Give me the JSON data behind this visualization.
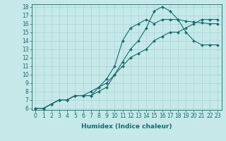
{
  "xlabel": "Humidex (Indice chaleur)",
  "ylabel": "",
  "xlim": [
    -0.5,
    23.5
  ],
  "ylim": [
    5.8,
    18.3
  ],
  "xticks": [
    0,
    1,
    2,
    3,
    4,
    5,
    6,
    7,
    8,
    9,
    10,
    11,
    12,
    13,
    14,
    15,
    16,
    17,
    18,
    19,
    20,
    21,
    22,
    23
  ],
  "yticks": [
    6,
    7,
    8,
    9,
    10,
    11,
    12,
    13,
    14,
    15,
    16,
    17,
    18
  ],
  "bg_color": "#c5e8e8",
  "line_color": "#1a6b6b",
  "grid_color": "#a8d4d4",
  "line1_x": [
    0,
    1,
    2,
    3,
    4,
    5,
    6,
    7,
    8,
    9,
    10,
    11,
    12,
    13,
    14,
    15,
    16,
    17,
    18,
    19,
    20,
    21,
    22,
    23
  ],
  "line1_y": [
    6,
    6,
    6.5,
    7,
    7,
    7.5,
    7.5,
    7.5,
    8.0,
    8.5,
    10,
    11.5,
    13,
    14,
    15.5,
    17.5,
    18,
    17.5,
    16.5,
    16.3,
    16.2,
    16.1,
    16.0,
    16.0
  ],
  "line2_x": [
    0,
    1,
    2,
    3,
    4,
    5,
    6,
    7,
    8,
    9,
    10,
    11,
    12,
    13,
    14,
    15,
    16,
    17,
    18,
    19,
    20,
    21,
    22,
    23
  ],
  "line2_y": [
    6,
    6,
    6.5,
    7,
    7,
    7.5,
    7.5,
    7.5,
    8.5,
    9.5,
    11,
    14,
    15.5,
    16,
    16.5,
    16,
    16.5,
    16.5,
    16.5,
    15,
    14,
    13.5,
    13.5,
    13.5
  ],
  "line3_x": [
    0,
    1,
    2,
    3,
    4,
    5,
    6,
    7,
    8,
    9,
    10,
    11,
    12,
    13,
    14,
    15,
    16,
    17,
    18,
    19,
    20,
    21,
    22,
    23
  ],
  "line3_y": [
    6,
    6,
    6.5,
    7,
    7,
    7.5,
    7.5,
    8,
    8.5,
    9,
    10,
    11,
    12,
    12.5,
    13,
    14,
    14.5,
    15,
    15,
    15.5,
    16,
    16.5,
    16.5,
    16.5
  ],
  "marker": "D",
  "markersize": 2.0,
  "linewidth": 0.8,
  "xlabel_fontsize": 6.5,
  "tick_fontsize": 5.5
}
